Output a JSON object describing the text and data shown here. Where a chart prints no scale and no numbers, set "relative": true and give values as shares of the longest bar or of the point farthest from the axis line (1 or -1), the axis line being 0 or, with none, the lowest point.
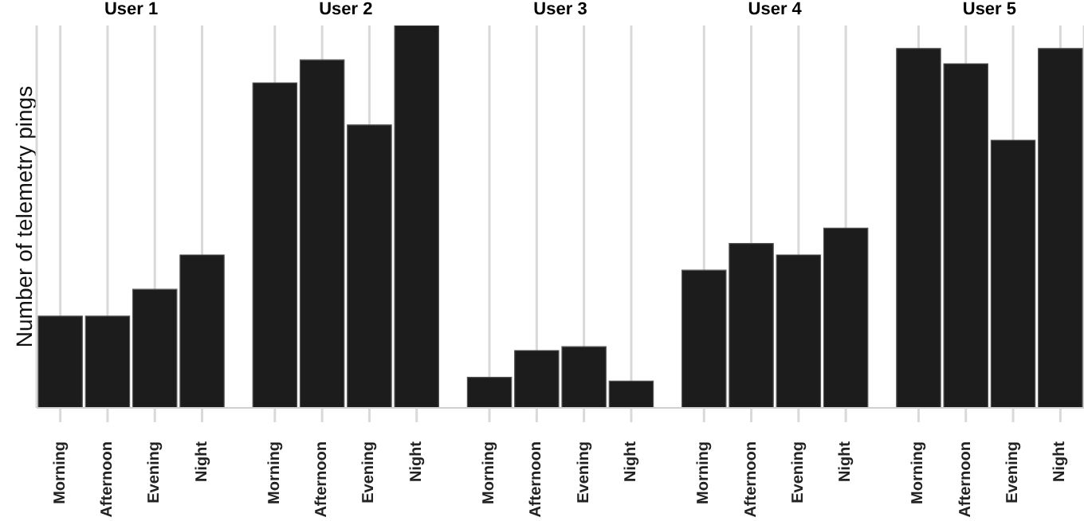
{
  "chart_data": {
    "type": "bar",
    "ylabel": "Number of telemetry pings",
    "annotations": [
      "User 1",
      "User 2",
      "User 3",
      "User 4",
      "User 5"
    ],
    "categories": [
      "Morning",
      "Afternoon",
      "Evening",
      "Night",
      "Morning",
      "Afternoon",
      "Evening",
      "Night",
      "Morning",
      "Afternoon",
      "Evening",
      "Night",
      "Morning",
      "Afternoon",
      "Evening",
      "Night",
      "Morning",
      "Afternoon",
      "Evening",
      "Night"
    ],
    "values": [
      0.24,
      0.24,
      0.31,
      0.4,
      0.85,
      0.91,
      0.74,
      1,
      0.08,
      0.15,
      0.16,
      0.07,
      0.36,
      0.43,
      0.4,
      0.47,
      0.94,
      0.9,
      0.7,
      0.94
    ],
    "color": "#1c1c1c",
    "relative": true,
    "grid": "x"
  }
}
